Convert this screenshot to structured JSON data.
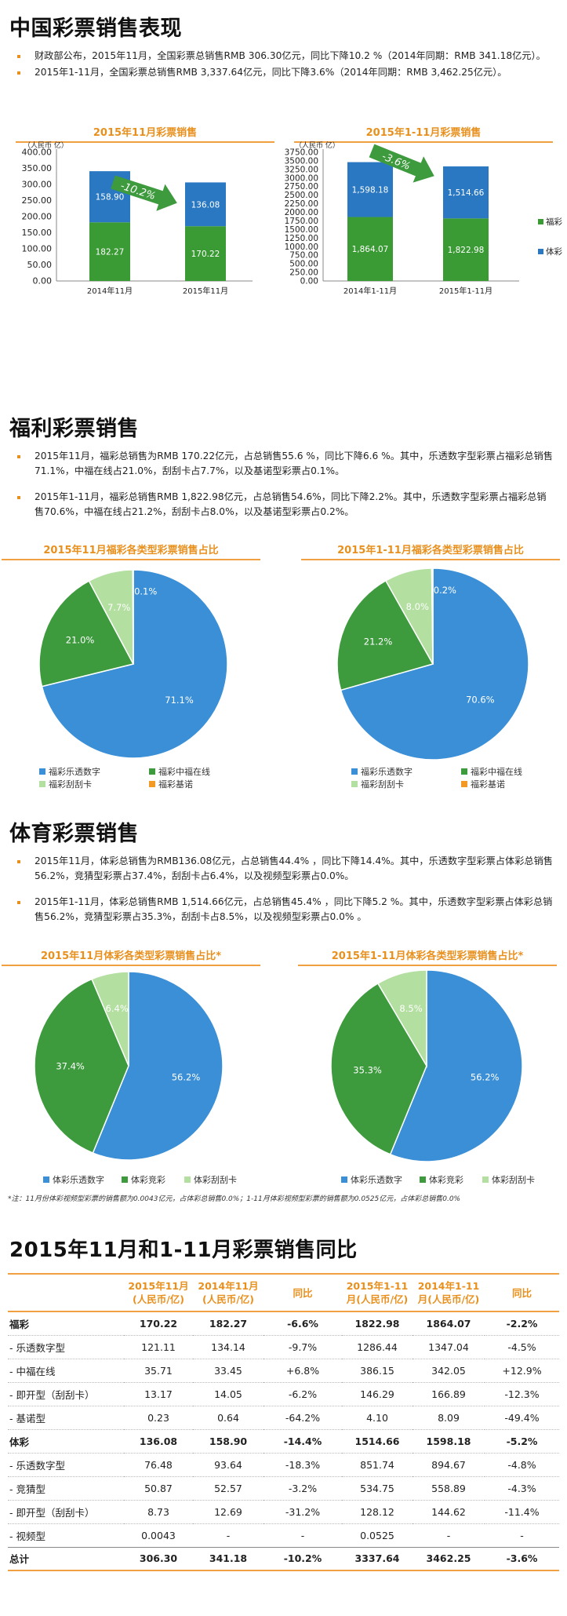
{
  "section1": {
    "title": "中国彩票销售表现",
    "bullets": [
      "财政部公布，2015年11月，全国彩票总销售RMB 306.30亿元，同比下降10.2 %（2014年同期：RMB 341.18亿元）。",
      "2015年1-11月，全国彩票总销售RMB 3,337.64亿元，同比下降3.6%（2014年同期：RMB 3,462.25亿元）。"
    ]
  },
  "section2": {
    "title": "福利彩票销售",
    "bullets": [
      "2015年11月，福彩总销售为RMB 170.22亿元，占总销售55.6 %，同比下降6.6 %。其中，乐透数字型彩票占福彩总销售71.1%，中福在线占21.0%，刮刮卡占7.7%，以及基诺型彩票占0.1%。",
      "2015年1-11月，福彩总销售RMB 1,822.98亿元，占总销售54.6%，同比下降2.2%。其中，乐透数字型彩票占福彩总销售70.6%，中福在线占21.2%，刮刮卡占8.0%，以及基诺型彩票占0.2%。"
    ]
  },
  "section3": {
    "title": "体育彩票销售",
    "bullets": [
      "2015年11月，体彩总销售为RMB136.08亿元，占总销售44.4% ，同比下降14.4%。其中，乐透数字型彩票占体彩总销售56.2%，竞猜型彩票占37.4%，刮刮卡占6.4%，以及视频型彩票占0.0%。",
      "2015年1-11月，体彩总销售RMB 1,514.66亿元，占总销售45.4% ，同比下降5.2 %。其中，乐透数字型彩票占体彩总销售56.2%，竞猜型彩票占35.3%，刮刮卡占8.5%，以及视频型彩票占0.0% 。"
    ]
  },
  "note": "*注：11月份体彩视频型彩票的销售额为0.0043亿元，占体彩总销售0.0%；1-11月体彩视频型彩票的销售额为0.0525亿元，占体彩总销售0.0%",
  "section4": {
    "title": "2015年11月和1-11月彩票销售同比"
  },
  "colors": {
    "welfare": "#3a9a34",
    "sports": "#2a78c2",
    "lotto": "#3a8fd6",
    "zhongfu": "#3d9a3d",
    "scratch": "#b3dfa0",
    "keno": "#f39a26",
    "accent": "#e8901e",
    "arrow": "#3d9a3d"
  },
  "chart_data": [
    {
      "type": "bar",
      "stacked": true,
      "title": "2015年11月彩票销售",
      "unit": "（人民币 亿）",
      "categories": [
        "2014年11月",
        "2015年11月"
      ],
      "series": [
        {
          "name": "福彩",
          "values": [
            182.27,
            170.22
          ],
          "labels": [
            "182.27",
            "170.22"
          ]
        },
        {
          "name": "体彩",
          "values": [
            158.9,
            136.08
          ],
          "labels": [
            "158.90",
            "136.08"
          ]
        }
      ],
      "ylim": [
        0,
        400
      ],
      "yticks": [
        "0.00",
        "50.00",
        "100.00",
        "150.00",
        "200.00",
        "250.00",
        "300.00",
        "350.00",
        "400.00"
      ],
      "annotation": "-10.2%"
    },
    {
      "type": "bar",
      "stacked": true,
      "title": "2015年1-11月彩票销售",
      "unit": "（人民币 亿）",
      "categories": [
        "2014年1-11月",
        "2015年1-11月"
      ],
      "series": [
        {
          "name": "福彩",
          "values": [
            1864.07,
            1822.98
          ],
          "labels": [
            "1,864.07",
            "1,822.98"
          ]
        },
        {
          "name": "体彩",
          "values": [
            1598.18,
            1514.66
          ],
          "labels": [
            "1,598.18",
            "1,514.66"
          ]
        }
      ],
      "ylim": [
        0,
        3750
      ],
      "yticks": [
        "0.00",
        "250.00",
        "500.00",
        "750.00",
        "1000.00",
        "1250.00",
        "1500.00",
        "1750.00",
        "2000.00",
        "2250.00",
        "2500.00",
        "2750.00",
        "3000.00",
        "3250.00",
        "3500.00",
        "3750.00"
      ],
      "annotation": "-3.6%",
      "legend": [
        "福彩",
        "体彩"
      ],
      "legend_position": "right"
    },
    {
      "type": "pie",
      "title": "2015年11月福彩各类型彩票销售占比",
      "labels": [
        "福彩乐透数字",
        "福彩中福在线",
        "福彩刮刮卡",
        "福彩基诺"
      ],
      "values": [
        71.1,
        21.0,
        7.7,
        0.1
      ],
      "value_labels": [
        "71.1%",
        "21.0%",
        "7.7%",
        "0.1%"
      ],
      "legend_position": "bottom"
    },
    {
      "type": "pie",
      "title": "2015年1-11月福彩各类型彩票销售占比",
      "labels": [
        "福彩乐透数字",
        "福彩中福在线",
        "福彩刮刮卡",
        "福彩基诺"
      ],
      "values": [
        70.6,
        21.2,
        8.0,
        0.2
      ],
      "value_labels": [
        "70.6%",
        "21.2%",
        "8.0%",
        "0.2%"
      ],
      "legend_position": "bottom"
    },
    {
      "type": "pie",
      "title": "2015年11月体彩各类型彩票销售占比*",
      "labels": [
        "体彩乐透数字",
        "体彩竞彩",
        "体彩刮刮卡"
      ],
      "values": [
        56.2,
        37.4,
        6.4
      ],
      "value_labels": [
        "56.2%",
        "37.4%",
        "6.4%"
      ],
      "legend_position": "bottom"
    },
    {
      "type": "pie",
      "title": "2015年1-11月体彩各类型彩票销售占比*",
      "labels": [
        "体彩乐透数字",
        "体彩竞彩",
        "体彩刮刮卡"
      ],
      "values": [
        56.2,
        35.3,
        8.5
      ],
      "value_labels": [
        "56.2%",
        "35.3%",
        "8.5%"
      ],
      "legend_position": "bottom"
    },
    {
      "type": "table",
      "columns": [
        "",
        "2015年11月\n(人民币/亿)",
        "2014年11月\n(人民币/亿)",
        "同比",
        "2015年1-11\n月(人民币/亿)",
        "2014年1-11\n月(人民币/亿)",
        "同比"
      ],
      "rows": [
        {
          "bold": true,
          "cells": [
            "福彩",
            "170.22",
            "182.27",
            "-6.6%",
            "1822.98",
            "1864.07",
            "-2.2%"
          ]
        },
        {
          "bold": false,
          "cells": [
            "- 乐透数字型",
            "121.11",
            "134.14",
            "-9.7%",
            "1286.44",
            "1347.04",
            "-4.5%"
          ]
        },
        {
          "bold": false,
          "cells": [
            "- 中福在线",
            "35.71",
            "33.45",
            "+6.8%",
            "386.15",
            "342.05",
            "+12.9%"
          ]
        },
        {
          "bold": false,
          "cells": [
            "- 即开型（刮刮卡）",
            "13.17",
            "14.05",
            "-6.2%",
            "146.29",
            "166.89",
            "-12.3%"
          ]
        },
        {
          "bold": false,
          "cells": [
            "- 基诺型",
            "0.23",
            "0.64",
            "-64.2%",
            "4.10",
            "8.09",
            "-49.4%"
          ]
        },
        {
          "bold": true,
          "cells": [
            "体彩",
            "136.08",
            "158.90",
            "-14.4%",
            "1514.66",
            "1598.18",
            "-5.2%"
          ]
        },
        {
          "bold": false,
          "cells": [
            "- 乐透数字型",
            "76.48",
            "93.64",
            "-18.3%",
            "851.74",
            "894.67",
            "-4.8%"
          ]
        },
        {
          "bold": false,
          "cells": [
            "- 竞猜型",
            "50.87",
            "52.57",
            "-3.2%",
            "534.75",
            "558.89",
            "-4.3%"
          ]
        },
        {
          "bold": false,
          "cells": [
            "- 即开型（刮刮卡）",
            "8.73",
            "12.69",
            "-31.2%",
            "128.12",
            "144.62",
            "-11.4%"
          ]
        },
        {
          "bold": false,
          "cells": [
            "- 视频型",
            "0.0043",
            "-",
            "-",
            "0.0525",
            "-",
            "-"
          ]
        },
        {
          "bold": true,
          "total": true,
          "cells": [
            "总计",
            "306.30",
            "341.18",
            "-10.2%",
            "3337.64",
            "3462.25",
            "-3.6%"
          ]
        }
      ]
    }
  ]
}
